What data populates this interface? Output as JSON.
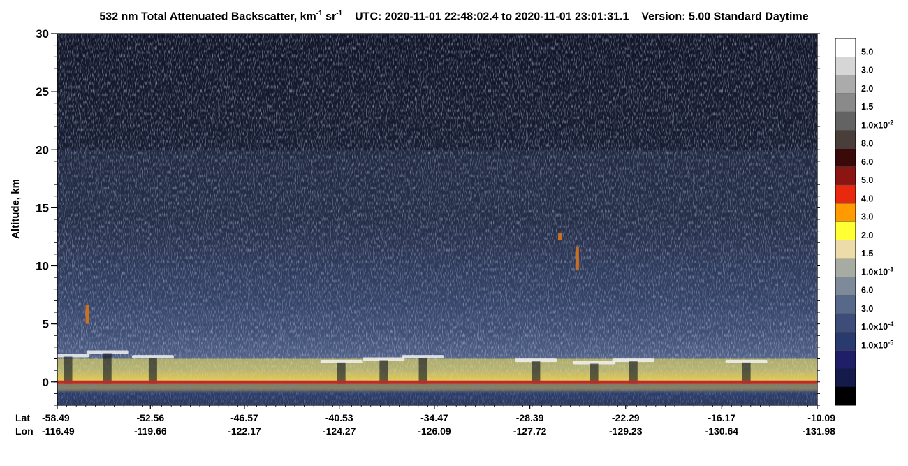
{
  "title": {
    "product": "532 nm Total Attenuated Backscatter, km",
    "unit_exp1": "-1",
    "unit_sr": " sr",
    "unit_exp2": "-1",
    "utc_label": "UTC:",
    "utc_start": "2020-11-01 22:48:02.4",
    "utc_to": "to",
    "utc_end": "2020-11-01 23:01:31.1",
    "version": "Version: 5.00",
    "mode": "Standard",
    "lighting": "Daytime"
  },
  "colors": {
    "background": "#ffffff",
    "surface_line": "#c0282a",
    "low_cloud": "#f3e35a",
    "noise_blue": "#3c4d7a",
    "noise_dark": "#0c0f1c"
  },
  "chart_data": {
    "type": "heatmap",
    "ylabel": "Altitude, km",
    "ylim": [
      -2,
      30
    ],
    "yticks": [
      "0",
      "5",
      "10",
      "15",
      "20",
      "25",
      "30"
    ],
    "y_minor_step": 1,
    "x_axis": {
      "row_labels": [
        "Lat",
        "Lon"
      ],
      "lat": [
        "-58.49",
        "-52.56",
        "-46.57",
        "-40.53",
        "-34.47",
        "-28.39",
        "-22.29",
        "-16.17",
        "-10.09"
      ],
      "lon": [
        "-116.49",
        "-119.66",
        "-122.17",
        "-124.27",
        "-126.09",
        "-127.72",
        "-129.23",
        "-130.64",
        "-131.98"
      ]
    },
    "features": {
      "surface_altitude_km": 0,
      "boundary_layer_top_km": 2,
      "low_cloud_tops_km": [
        2.3,
        2.6,
        2.2,
        1.8,
        2.0,
        2.2,
        1.9,
        1.7,
        1.9,
        1.8
      ],
      "noise_transition_altitude_km": 20,
      "thin_cirrus_km": [
        {
          "lat": -56.6,
          "alt_low": 5,
          "alt_high": 6.6
        },
        {
          "lat": -26.5,
          "alt_low": 12.2,
          "alt_high": 12.8
        },
        {
          "lat": -25.4,
          "alt_low": 9.6,
          "alt_high": 11.6
        }
      ]
    },
    "colorbar": {
      "colors": [
        "#ffffff",
        "#d6d6d6",
        "#ababab",
        "#8a8a8a",
        "#636363",
        "#4a3e3a",
        "#3a0a0a",
        "#8a1512",
        "#e8290e",
        "#ff9a00",
        "#ffff33",
        "#ecdcaa",
        "#a7aca2",
        "#7d8a99",
        "#56698b",
        "#3c4d7a",
        "#283a6e",
        "#1e1f66",
        "#141a4a",
        "#000000"
      ],
      "labels": [
        {
          "value": "5.0",
          "exp": ""
        },
        {
          "value": "3.0",
          "exp": ""
        },
        {
          "value": "2.0",
          "exp": ""
        },
        {
          "value": "1.5",
          "exp": ""
        },
        {
          "value": "1.0x10",
          "exp": "-2"
        },
        {
          "value": "8.0",
          "exp": ""
        },
        {
          "value": "6.0",
          "exp": ""
        },
        {
          "value": "5.0",
          "exp": ""
        },
        {
          "value": "4.0",
          "exp": ""
        },
        {
          "value": "3.0",
          "exp": ""
        },
        {
          "value": "2.0",
          "exp": ""
        },
        {
          "value": "1.5",
          "exp": ""
        },
        {
          "value": "1.0x10",
          "exp": "-3"
        },
        {
          "value": "6.0",
          "exp": ""
        },
        {
          "value": "3.0",
          "exp": ""
        },
        {
          "value": "1.0x10",
          "exp": "-4"
        },
        {
          "value": "1.0x10",
          "exp": "-5"
        }
      ]
    }
  }
}
